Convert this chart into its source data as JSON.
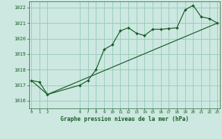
{
  "bg_color": "#cce8e0",
  "grid_color": "#99ccbb",
  "line_color": "#1a5c28",
  "xlabel_text": "Graphe pression niveau de la mer (hPa)",
  "xlim": [
    -0.3,
    23.3
  ],
  "ylim": [
    1015.5,
    1022.4
  ],
  "yticks": [
    1016,
    1017,
    1018,
    1019,
    1020,
    1021,
    1022
  ],
  "xticks": [
    0,
    1,
    2,
    6,
    7,
    8,
    9,
    10,
    11,
    12,
    13,
    14,
    15,
    16,
    17,
    18,
    19,
    20,
    21,
    22,
    23
  ],
  "series1_x": [
    0,
    1,
    2,
    6,
    7,
    8,
    9,
    10,
    11,
    12,
    13,
    14,
    15,
    16,
    17,
    18,
    19,
    20,
    21,
    22,
    23
  ],
  "series1_y": [
    1017.3,
    1017.2,
    1016.4,
    1017.0,
    1017.3,
    1018.0,
    1019.3,
    1019.6,
    1020.5,
    1020.7,
    1020.35,
    1020.2,
    1020.6,
    1020.6,
    1020.65,
    1020.7,
    1021.85,
    1022.15,
    1021.4,
    1021.3,
    1021.0
  ],
  "series2_x": [
    0,
    2,
    23
  ],
  "series2_y": [
    1017.3,
    1016.4,
    1021.0
  ]
}
